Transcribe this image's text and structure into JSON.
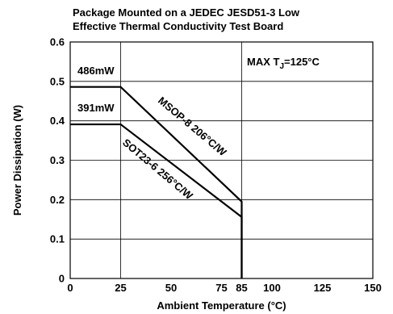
{
  "chart_data": {
    "type": "line",
    "title_lines": [
      "Package Mounted on a JEDEC JESD51-3 Low",
      "Effective Thermal Conductivity Test Board"
    ],
    "xlabel": "Ambient Temperature (°C)",
    "ylabel": "Power Dissipation (W)",
    "xlim": [
      0,
      150
    ],
    "ylim": [
      0,
      0.6
    ],
    "x_grid": [
      25,
      85
    ],
    "y_grid": [
      0.1,
      0.2,
      0.3,
      0.4,
      0.5
    ],
    "x_ticks": [
      {
        "value": 0,
        "label": "0"
      },
      {
        "value": 25,
        "label": "25"
      },
      {
        "value": 50,
        "label": "50"
      },
      {
        "value": 75,
        "label": "75"
      },
      {
        "value": 85,
        "label": "85"
      },
      {
        "value": 100,
        "label": "100"
      },
      {
        "value": 125,
        "label": "125"
      },
      {
        "value": 150,
        "label": "150"
      }
    ],
    "y_ticks": [
      {
        "value": 0,
        "label": "0"
      },
      {
        "value": 0.1,
        "label": "0.1"
      },
      {
        "value": 0.2,
        "label": "0.2"
      },
      {
        "value": 0.3,
        "label": "0.3"
      },
      {
        "value": 0.4,
        "label": "0.4"
      },
      {
        "value": 0.5,
        "label": "0.5"
      },
      {
        "value": 0.6,
        "label": "0.6"
      }
    ],
    "series": [
      {
        "name": "MSOP-8 206°C/W",
        "x": [
          0,
          25,
          85,
          85
        ],
        "y": [
          0.486,
          0.486,
          0.195,
          0
        ],
        "value_label": "486mW"
      },
      {
        "name": "SOT23-6 256°C/W",
        "x": [
          0,
          25,
          85,
          85
        ],
        "y": [
          0.391,
          0.391,
          0.156,
          0
        ],
        "value_label": "391mW"
      }
    ],
    "annotation_prefix": "MAX T",
    "annotation_sub": "J",
    "annotation_suffix": "=125°C",
    "grid": true,
    "legend": "none"
  }
}
